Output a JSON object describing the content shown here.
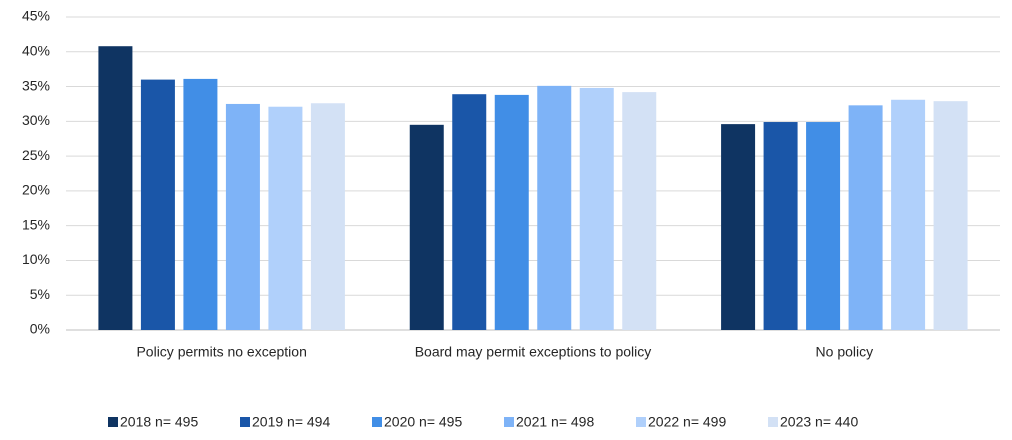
{
  "chart_data": {
    "type": "bar",
    "categories": [
      "Policy permits no exception",
      "Board may permit exceptions to policy",
      "No policy"
    ],
    "series": [
      {
        "name": "2018 n= 495",
        "color": "#0f3462",
        "values": [
          40.8,
          29.5,
          29.6
        ]
      },
      {
        "name": "2019 n= 494",
        "color": "#1a56a8",
        "values": [
          36.0,
          33.9,
          29.9
        ]
      },
      {
        "name": "2020 n= 495",
        "color": "#418ee6",
        "values": [
          36.1,
          33.8,
          29.9
        ]
      },
      {
        "name": "2021 n= 498",
        "color": "#7eb3f7",
        "values": [
          32.5,
          35.1,
          32.3
        ]
      },
      {
        "name": "2022 n= 499",
        "color": "#b0d0fb",
        "values": [
          32.1,
          34.8,
          33.1
        ]
      },
      {
        "name": "2023 n= 440",
        "color": "#d3e1f5",
        "values": [
          32.6,
          34.2,
          32.9
        ]
      }
    ],
    "ylim": [
      0,
      45
    ],
    "yticks": [
      {
        "value": 0,
        "label": "0%"
      },
      {
        "value": 5,
        "label": "5%"
      },
      {
        "value": 10,
        "label": "10%"
      },
      {
        "value": 15,
        "label": "15%"
      },
      {
        "value": 20,
        "label": "20%"
      },
      {
        "value": 25,
        "label": "25%"
      },
      {
        "value": 30,
        "label": "30%"
      },
      {
        "value": 35,
        "label": "35%"
      },
      {
        "value": 40,
        "label": "40%"
      },
      {
        "value": 45,
        "label": "45%"
      }
    ],
    "grid": true,
    "legend": "bottom"
  }
}
